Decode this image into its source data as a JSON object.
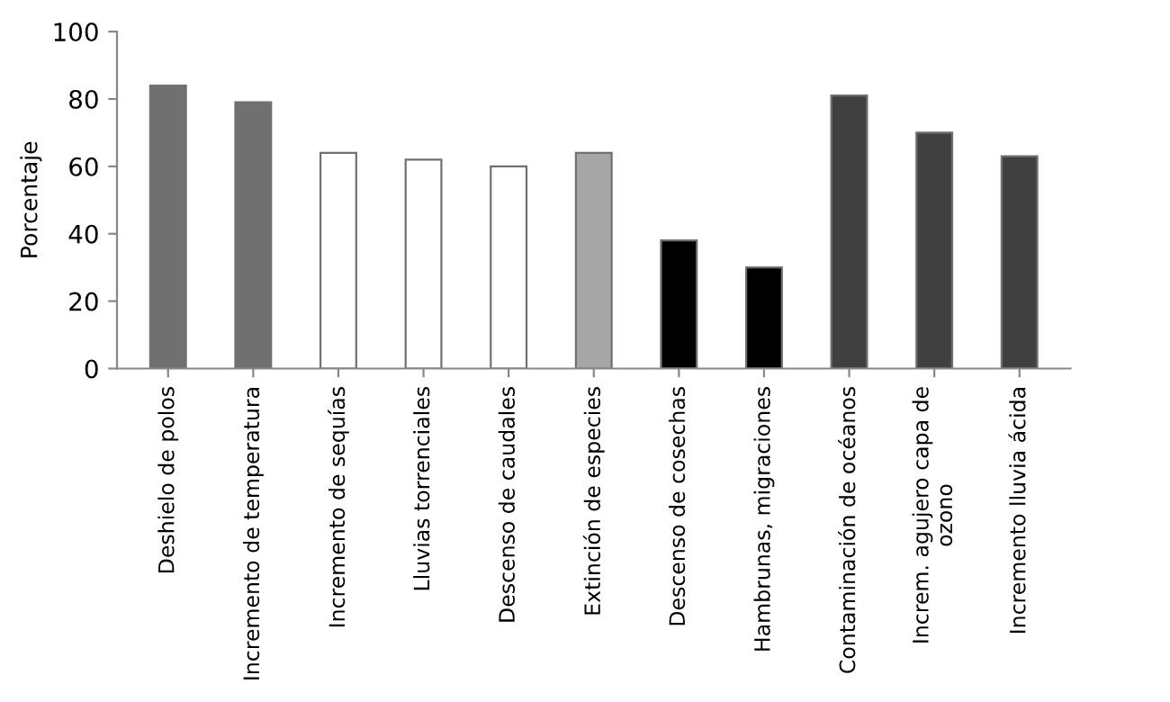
{
  "chart_data": {
    "type": "bar",
    "ylabel": "Porcentaje",
    "categories": [
      "Deshielo de polos",
      "Incremento de temperatura",
      "Incremento de sequías",
      "Lluvias torrenciales",
      "Descenso de caudales",
      "Extinción de especies",
      "Descenso de cosechas",
      "Hambrunas, migraciones",
      "Contaminación de océanos",
      "Increm. agujero capa de\nozono",
      "Incremento lluvia ácida"
    ],
    "values": [
      84,
      79,
      64,
      62,
      60,
      64,
      38,
      30,
      81,
      70,
      63
    ],
    "colors": [
      "#707070",
      "#707070",
      "#ffffff",
      "#ffffff",
      "#ffffff",
      "#a6a6a6",
      "#000000",
      "#000000",
      "#404040",
      "#404040",
      "#404040"
    ],
    "ylim": [
      0,
      100
    ],
    "yticks": [
      0,
      20,
      40,
      60,
      80,
      100
    ],
    "grid": false,
    "legend": false
  }
}
